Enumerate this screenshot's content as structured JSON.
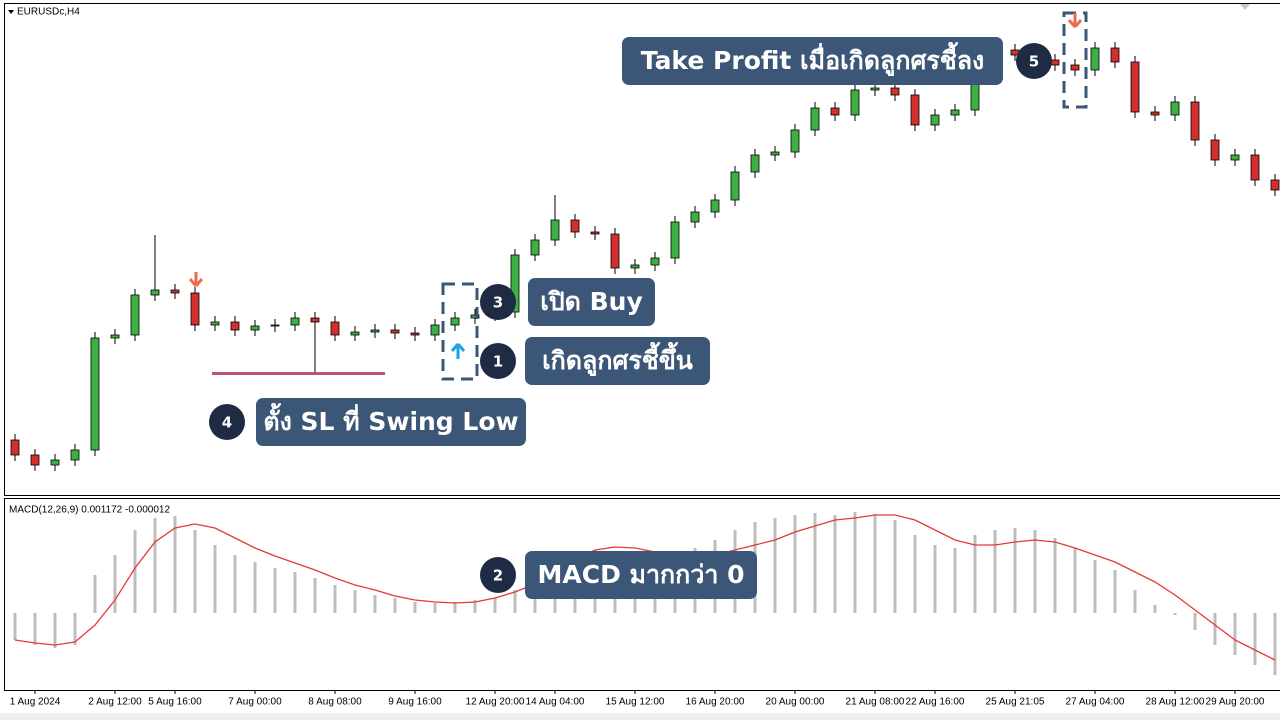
{
  "chart_data": {
    "type": "candlestick",
    "symbol": "EURUSDc,H4",
    "categories": [
      null,
      "1 Aug 2024",
      null,
      null,
      null,
      "2 Aug 12:00",
      null,
      null,
      "5 Aug 16:00",
      null,
      null,
      null,
      "7 Aug 00:00",
      null,
      null,
      null,
      "8 Aug 08:00",
      null,
      null,
      null,
      "9 Aug 16:00",
      null,
      null,
      null,
      "12 Aug 20:00",
      null,
      null,
      "14 Aug 04:00",
      null,
      null,
      null,
      "15 Aug 12:00",
      null,
      null,
      null,
      "16 Aug 20:00",
      null,
      null,
      null,
      "20 Aug 00:00",
      null,
      null,
      null,
      "21 Aug 08:00",
      null,
      null,
      "22 Aug 16:00",
      null,
      null,
      null,
      "25 Aug 21:05",
      null,
      null,
      null,
      "27 Aug 04:00",
      null,
      null,
      null,
      "28 Aug 12:00",
      null,
      null,
      "29 Aug 20:00",
      null,
      null
    ],
    "open": [
      1.0805,
      1.079,
      1.078,
      1.0785,
      1.0795,
      1.0907,
      1.091,
      1.095,
      1.0955,
      1.0952,
      1.092,
      1.0923,
      1.0915,
      1.0919,
      1.092,
      1.0927,
      1.0923,
      1.091,
      1.0913,
      1.0915,
      1.0912,
      1.091,
      1.092,
      1.0927,
      1.093,
      1.0933,
      1.099,
      1.1005,
      1.1025,
      1.1013,
      1.1011,
      1.0977,
      1.098,
      1.0987,
      1.1023,
      1.1033,
      1.1045,
      1.1073,
      1.109,
      1.1093,
      1.1115,
      1.1137,
      1.113,
      1.1155,
      1.1157,
      1.115,
      1.112,
      1.113,
      1.1135,
      1.12,
      1.1195,
      1.119,
      1.1185,
      1.118,
      1.1175,
      1.1197,
      1.1183,
      1.1133,
      1.113,
      1.1143,
      1.1105,
      1.1085,
      1.109,
      1.1065
    ],
    "high": [
      1.0811,
      1.0796,
      1.0791,
      1.0801,
      1.0913,
      1.0916,
      1.0956,
      1.101,
      1.0961,
      1.0958,
      1.0929,
      1.0929,
      1.0925,
      1.0926,
      1.0933,
      1.0933,
      1.0929,
      1.0919,
      1.0921,
      1.0921,
      1.0918,
      1.0926,
      1.0933,
      1.0936,
      1.0939,
      1.0996,
      1.1011,
      1.105,
      1.1031,
      1.1019,
      1.1017,
      1.0986,
      1.0993,
      1.1029,
      1.1039,
      1.1051,
      1.1079,
      1.1096,
      1.1099,
      1.1121,
      1.1143,
      1.1143,
      1.1161,
      1.1163,
      1.1163,
      1.1156,
      1.1136,
      1.1141,
      1.1206,
      1.1206,
      1.1201,
      1.1196,
      1.1191,
      1.1186,
      1.1203,
      1.1203,
      1.1189,
      1.1139,
      1.1149,
      1.1149,
      1.1111,
      1.1096,
      1.1096,
      1.1071
    ],
    "low": [
      1.0784,
      1.0774,
      1.0774,
      1.0779,
      1.0789,
      1.0901,
      1.0904,
      1.0944,
      1.0946,
      1.0914,
      1.0914,
      1.0909,
      1.0909,
      1.0913,
      1.0914,
      1.0873,
      1.0904,
      1.0904,
      1.0907,
      1.0906,
      1.0904,
      1.0904,
      1.0914,
      1.0921,
      1.0924,
      1.0927,
      1.0984,
      1.0999,
      1.1007,
      1.1005,
      1.0971,
      1.0971,
      1.0974,
      1.0981,
      1.1017,
      1.1027,
      1.1039,
      1.1067,
      1.1084,
      1.1087,
      1.1109,
      1.1124,
      1.1124,
      1.1149,
      1.1144,
      1.1114,
      1.1114,
      1.1124,
      1.1129,
      1.1189,
      1.1184,
      1.1179,
      1.1174,
      1.1169,
      1.1169,
      1.1177,
      1.1127,
      1.1124,
      1.1124,
      1.1099,
      1.1079,
      1.1079,
      1.1059,
      1.1049
    ],
    "close": [
      1.079,
      1.078,
      1.0785,
      1.0795,
      1.0907,
      1.091,
      1.095,
      1.0955,
      1.0952,
      1.092,
      1.0923,
      1.0915,
      1.0919,
      1.092,
      1.0927,
      1.0923,
      1.091,
      1.0913,
      1.0915,
      1.0912,
      1.091,
      1.092,
      1.0927,
      1.093,
      1.0933,
      1.099,
      1.1005,
      1.1025,
      1.1013,
      1.1011,
      1.0977,
      1.098,
      1.0987,
      1.1023,
      1.1033,
      1.1045,
      1.1073,
      1.109,
      1.1093,
      1.1115,
      1.1137,
      1.113,
      1.1155,
      1.1157,
      1.115,
      1.112,
      1.113,
      1.1135,
      1.12,
      1.1195,
      1.119,
      1.1185,
      1.118,
      1.1175,
      1.1197,
      1.1183,
      1.1133,
      1.113,
      1.1143,
      1.1105,
      1.1085,
      1.109,
      1.1065,
      1.1055
    ],
    "up_color": "#3cb043",
    "down_color": "#d32f2f",
    "ylim": [
      1.075,
      1.124
    ],
    "macd": {
      "type": "bar",
      "title": "MACD(12,26,9) 0.001172 -0.000012",
      "ylim": [
        -0.00154,
        0.00226
      ],
      "series": [
        {
          "type": "bar",
          "color": "#bdbdbd",
          "values": [
            -0.00054,
            -0.00064,
            -0.0007,
            -0.00064,
            0.00076,
            0.00116,
            0.00166,
            0.0019,
            0.00194,
            0.00166,
            0.00136,
            0.00116,
            0.00102,
            0.0009,
            0.00082,
            0.0007,
            0.00056,
            0.00046,
            0.00036,
            0.0003,
            0.00022,
            0.0002,
            0.00022,
            0.00026,
            0.0003,
            0.00046,
            0.00066,
            0.00096,
            0.00116,
            0.00126,
            0.00116,
            0.00106,
            0.00102,
            0.00116,
            0.0013,
            0.00146,
            0.00166,
            0.00182,
            0.0019,
            0.00196,
            0.002,
            0.00196,
            0.00202,
            0.00198,
            0.00186,
            0.00156,
            0.00136,
            0.0013,
            0.00156,
            0.00166,
            0.0017,
            0.00166,
            0.0015,
            0.0013,
            0.00106,
            0.00086,
            0.00046,
            0.00016,
            -4e-05,
            -0.00034,
            -0.00064,
            -0.00084,
            -0.00104,
            -0.00124
          ]
        },
        {
          "type": "line",
          "color": "#e53935",
          "values": [
            -0.00054,
            -0.0006,
            -0.00064,
            -0.00058,
            -0.00024,
            0.00026,
            0.0009,
            0.00142,
            0.0017,
            0.00178,
            0.0017,
            0.0015,
            0.0013,
            0.00114,
            0.001,
            0.00086,
            0.0007,
            0.00056,
            0.00046,
            0.00034,
            0.00026,
            0.00022,
            0.0002,
            0.00022,
            0.0003,
            0.00042,
            0.00058,
            0.00082,
            0.00106,
            0.00126,
            0.00132,
            0.0013,
            0.00122,
            0.00116,
            0.0011,
            0.00116,
            0.00126,
            0.00136,
            0.00146,
            0.00162,
            0.00174,
            0.00186,
            0.0019,
            0.00196,
            0.00196,
            0.00186,
            0.00166,
            0.00146,
            0.00136,
            0.00136,
            0.00142,
            0.00146,
            0.00142,
            0.0013,
            0.00116,
            0.00102,
            0.00082,
            0.00062,
            0.00036,
            6e-05,
            -0.00024,
            -0.00054,
            -0.00074,
            -0.00094
          ]
        }
      ]
    }
  },
  "annotations": [
    {
      "step": 1,
      "text": "เกิดลูกศรชี้ขึ้น"
    },
    {
      "step": 2,
      "text": "MACD มากกว่า 0"
    },
    {
      "step": 3,
      "text": "เปิด Buy"
    },
    {
      "step": 4,
      "text": "ตั้ง SL ที่ Swing Low"
    },
    {
      "step": 5,
      "text": "Take Profit เมื่อเกิดลูกศรชี้ลง"
    }
  ]
}
